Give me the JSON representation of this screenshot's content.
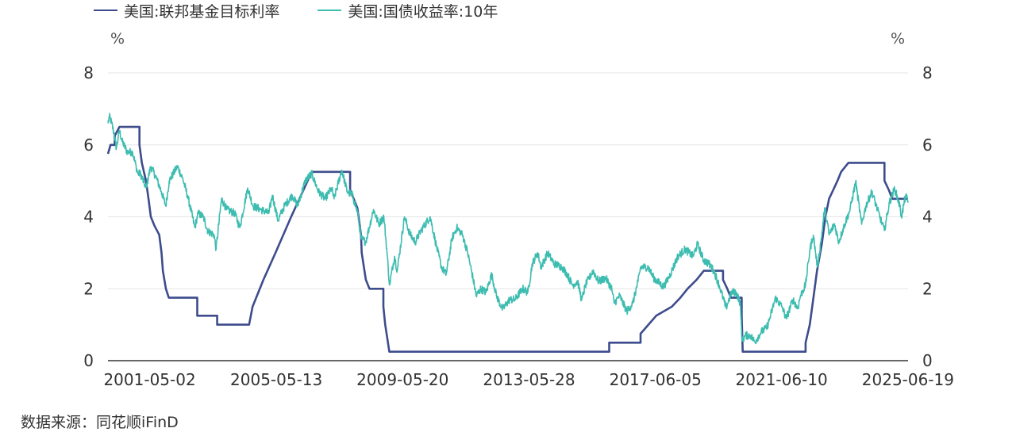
{
  "legend": {
    "series_1": "美国:联邦基金目标利率",
    "series_2": "美国:国债收益率:10年"
  },
  "unit_left": "%",
  "unit_right": "%",
  "source": "数据来源：同花顺iFinD",
  "colors": {
    "series_1": "#3d4c8c",
    "series_2": "#3dbcb0",
    "grid": "#e6e6e6",
    "axis": "#333333"
  },
  "chart_data": {
    "type": "line",
    "x_axis": {
      "type": "date",
      "range": [
        "2000-01-03",
        "2025-06-19"
      ],
      "tick_labels": [
        "2001-05-02",
        "2005-05-13",
        "2009-05-20",
        "2013-05-28",
        "2017-06-05",
        "2021-06-10",
        "2025-06-19"
      ]
    },
    "y_axis": {
      "range": [
        0,
        8
      ],
      "ticks": [
        0,
        2,
        4,
        6,
        8
      ],
      "dual": true
    },
    "grid": true,
    "legend_position": "top-left",
    "series": [
      {
        "name": "美国:联邦基金目标利率",
        "style": "step",
        "points": [
          [
            "2000-01-03",
            5.75
          ],
          [
            "2000-02-02",
            6.0
          ],
          [
            "2000-03-21",
            6.0
          ],
          [
            "2000-03-21",
            6.25
          ],
          [
            "2000-05-16",
            6.5
          ],
          [
            "2001-01-03",
            6.5
          ],
          [
            "2001-01-03",
            6.0
          ],
          [
            "2001-01-31",
            5.5
          ],
          [
            "2001-03-20",
            5.0
          ],
          [
            "2001-04-18",
            4.5
          ],
          [
            "2001-05-15",
            4.0
          ],
          [
            "2001-06-27",
            3.75
          ],
          [
            "2001-08-21",
            3.5
          ],
          [
            "2001-09-17",
            3.0
          ],
          [
            "2001-10-02",
            2.5
          ],
          [
            "2001-11-06",
            2.0
          ],
          [
            "2001-12-11",
            1.75
          ],
          [
            "2002-11-06",
            1.75
          ],
          [
            "2002-11-06",
            1.25
          ],
          [
            "2003-06-25",
            1.25
          ],
          [
            "2003-06-25",
            1.0
          ],
          [
            "2004-06-30",
            1.0
          ],
          [
            "2004-08-10",
            1.5
          ],
          [
            "2004-12-14",
            2.25
          ],
          [
            "2005-05-03",
            3.0
          ],
          [
            "2005-11-01",
            4.0
          ],
          [
            "2006-06-29",
            5.25
          ],
          [
            "2007-09-18",
            5.25
          ],
          [
            "2007-09-18",
            4.75
          ],
          [
            "2007-12-11",
            4.25
          ],
          [
            "2008-01-22",
            3.5
          ],
          [
            "2008-01-30",
            3.0
          ],
          [
            "2008-03-18",
            2.25
          ],
          [
            "2008-04-30",
            2.0
          ],
          [
            "2008-10-08",
            2.0
          ],
          [
            "2008-10-08",
            1.5
          ],
          [
            "2008-10-29",
            1.0
          ],
          [
            "2008-12-16",
            0.25
          ],
          [
            "2015-12-16",
            0.25
          ],
          [
            "2015-12-16",
            0.5
          ],
          [
            "2016-12-14",
            0.5
          ],
          [
            "2016-12-14",
            0.75
          ],
          [
            "2017-03-15",
            1.0
          ],
          [
            "2017-06-14",
            1.25
          ],
          [
            "2017-12-13",
            1.5
          ],
          [
            "2018-03-21",
            1.75
          ],
          [
            "2018-06-13",
            2.0
          ],
          [
            "2018-09-26",
            2.25
          ],
          [
            "2018-12-19",
            2.5
          ],
          [
            "2019-07-31",
            2.5
          ],
          [
            "2019-07-31",
            2.25
          ],
          [
            "2019-09-18",
            2.0
          ],
          [
            "2019-10-30",
            1.75
          ],
          [
            "2020-03-03",
            1.75
          ],
          [
            "2020-03-03",
            1.25
          ],
          [
            "2020-03-15",
            0.25
          ],
          [
            "2022-03-16",
            0.25
          ],
          [
            "2022-03-16",
            0.5
          ],
          [
            "2022-05-04",
            1.0
          ],
          [
            "2022-06-15",
            1.75
          ],
          [
            "2022-07-27",
            2.5
          ],
          [
            "2022-09-21",
            3.25
          ],
          [
            "2022-11-02",
            4.0
          ],
          [
            "2022-12-14",
            4.5
          ],
          [
            "2023-02-01",
            4.75
          ],
          [
            "2023-03-22",
            5.0
          ],
          [
            "2023-05-03",
            5.25
          ],
          [
            "2023-07-26",
            5.5
          ],
          [
            "2024-09-18",
            5.5
          ],
          [
            "2024-09-18",
            5.0
          ],
          [
            "2024-11-07",
            4.75
          ],
          [
            "2024-12-18",
            4.5
          ],
          [
            "2025-06-19",
            4.5
          ]
        ]
      },
      {
        "name": "美国:国债收益率:10年",
        "style": "line",
        "points": [
          [
            "2000-01-03",
            6.6
          ],
          [
            "2000-01-20",
            6.79
          ],
          [
            "2000-02-15",
            6.6
          ],
          [
            "2000-03-15",
            6.3
          ],
          [
            "2000-04-10",
            5.9
          ],
          [
            "2000-05-15",
            6.4
          ],
          [
            "2000-06-15",
            6.1
          ],
          [
            "2000-08-15",
            5.8
          ],
          [
            "2000-10-15",
            5.8
          ],
          [
            "2000-12-15",
            5.2
          ],
          [
            "2001-01-15",
            5.2
          ],
          [
            "2001-03-20",
            4.8
          ],
          [
            "2001-05-15",
            5.4
          ],
          [
            "2001-07-15",
            5.1
          ],
          [
            "2001-09-15",
            4.7
          ],
          [
            "2001-11-05",
            4.3
          ],
          [
            "2001-12-15",
            5.0
          ],
          [
            "2002-03-20",
            5.4
          ],
          [
            "2002-05-15",
            5.1
          ],
          [
            "2002-07-15",
            4.6
          ],
          [
            "2002-10-09",
            3.7
          ],
          [
            "2002-11-15",
            4.1
          ],
          [
            "2003-01-15",
            4.0
          ],
          [
            "2003-03-10",
            3.6
          ],
          [
            "2003-05-20",
            3.5
          ],
          [
            "2003-06-13",
            3.1
          ],
          [
            "2003-08-15",
            4.5
          ],
          [
            "2003-10-15",
            4.2
          ],
          [
            "2004-01-15",
            4.1
          ],
          [
            "2004-03-15",
            3.7
          ],
          [
            "2004-06-14",
            4.8
          ],
          [
            "2004-08-15",
            4.3
          ],
          [
            "2004-11-15",
            4.2
          ],
          [
            "2005-02-15",
            4.1
          ],
          [
            "2005-03-28",
            4.6
          ],
          [
            "2005-06-01",
            3.9
          ],
          [
            "2005-08-15",
            4.3
          ],
          [
            "2005-11-15",
            4.6
          ],
          [
            "2006-01-15",
            4.3
          ],
          [
            "2006-04-15",
            5.0
          ],
          [
            "2006-06-28",
            5.2
          ],
          [
            "2006-09-15",
            4.7
          ],
          [
            "2006-12-01",
            4.5
          ],
          [
            "2007-02-15",
            4.8
          ],
          [
            "2007-03-15",
            4.5
          ],
          [
            "2007-06-12",
            5.3
          ],
          [
            "2007-08-15",
            4.7
          ],
          [
            "2007-10-15",
            4.6
          ],
          [
            "2007-12-15",
            4.1
          ],
          [
            "2008-01-23",
            3.4
          ],
          [
            "2008-03-17",
            3.3
          ],
          [
            "2008-06-15",
            4.2
          ],
          [
            "2008-08-15",
            3.8
          ],
          [
            "2008-10-14",
            4.0
          ],
          [
            "2008-11-20",
            3.0
          ],
          [
            "2008-12-18",
            2.1
          ],
          [
            "2009-02-15",
            2.9
          ],
          [
            "2009-03-18",
            2.5
          ],
          [
            "2009-06-10",
            4.0
          ],
          [
            "2009-08-15",
            3.5
          ],
          [
            "2009-10-15",
            3.3
          ],
          [
            "2009-12-15",
            3.6
          ],
          [
            "2010-04-05",
            4.0
          ],
          [
            "2010-06-15",
            3.2
          ],
          [
            "2010-08-15",
            2.6
          ],
          [
            "2010-10-08",
            2.4
          ],
          [
            "2010-12-15",
            3.4
          ],
          [
            "2011-02-08",
            3.7
          ],
          [
            "2011-04-15",
            3.5
          ],
          [
            "2011-06-15",
            3.0
          ],
          [
            "2011-08-15",
            2.3
          ],
          [
            "2011-09-22",
            1.8
          ],
          [
            "2011-11-15",
            2.0
          ],
          [
            "2012-01-15",
            1.9
          ],
          [
            "2012-03-19",
            2.4
          ],
          [
            "2012-05-15",
            1.8
          ],
          [
            "2012-07-24",
            1.43
          ],
          [
            "2012-10-15",
            1.7
          ],
          [
            "2012-12-15",
            1.7
          ],
          [
            "2013-03-15",
            2.0
          ],
          [
            "2013-05-15",
            1.9
          ],
          [
            "2013-07-05",
            2.7
          ],
          [
            "2013-09-05",
            3.0
          ],
          [
            "2013-10-15",
            2.6
          ],
          [
            "2013-12-31",
            3.0
          ],
          [
            "2014-03-15",
            2.7
          ],
          [
            "2014-06-15",
            2.6
          ],
          [
            "2014-08-15",
            2.4
          ],
          [
            "2014-10-15",
            2.1
          ],
          [
            "2014-12-15",
            2.2
          ],
          [
            "2015-01-30",
            1.68
          ],
          [
            "2015-03-15",
            2.1
          ],
          [
            "2015-06-10",
            2.5
          ],
          [
            "2015-08-15",
            2.2
          ],
          [
            "2015-11-05",
            2.3
          ],
          [
            "2016-01-15",
            2.0
          ],
          [
            "2016-02-11",
            1.6
          ],
          [
            "2016-04-15",
            1.8
          ],
          [
            "2016-07-08",
            1.37
          ],
          [
            "2016-09-15",
            1.6
          ],
          [
            "2016-11-15",
            2.2
          ],
          [
            "2016-12-15",
            2.6
          ],
          [
            "2017-03-13",
            2.6
          ],
          [
            "2017-05-15",
            2.3
          ],
          [
            "2017-09-07",
            2.05
          ],
          [
            "2017-11-15",
            2.35
          ],
          [
            "2018-02-21",
            2.9
          ],
          [
            "2018-05-17",
            3.1
          ],
          [
            "2018-08-15",
            2.9
          ],
          [
            "2018-10-08",
            3.24
          ],
          [
            "2018-12-15",
            2.8
          ],
          [
            "2019-02-15",
            2.7
          ],
          [
            "2019-04-15",
            2.5
          ],
          [
            "2019-06-15",
            2.1
          ],
          [
            "2019-09-03",
            1.47
          ],
          [
            "2019-11-07",
            1.9
          ],
          [
            "2019-12-31",
            1.9
          ],
          [
            "2020-02-15",
            1.6
          ],
          [
            "2020-03-09",
            0.54
          ],
          [
            "2020-04-15",
            0.7
          ],
          [
            "2020-06-15",
            0.7
          ],
          [
            "2020-08-04",
            0.52
          ],
          [
            "2020-10-15",
            0.8
          ],
          [
            "2020-12-15",
            0.9
          ],
          [
            "2021-01-15",
            1.1
          ],
          [
            "2021-03-31",
            1.74
          ],
          [
            "2021-06-15",
            1.5
          ],
          [
            "2021-08-03",
            1.17
          ],
          [
            "2021-10-21",
            1.7
          ],
          [
            "2021-12-15",
            1.45
          ],
          [
            "2022-01-15",
            1.8
          ],
          [
            "2022-03-15",
            2.1
          ],
          [
            "2022-05-06",
            3.1
          ],
          [
            "2022-06-14",
            3.49
          ],
          [
            "2022-08-01",
            2.6
          ],
          [
            "2022-09-15",
            3.4
          ],
          [
            "2022-10-24",
            4.25
          ],
          [
            "2022-12-15",
            3.5
          ],
          [
            "2023-02-15",
            3.8
          ],
          [
            "2023-04-06",
            3.3
          ],
          [
            "2023-06-15",
            3.8
          ],
          [
            "2023-08-15",
            4.2
          ],
          [
            "2023-10-19",
            4.98
          ],
          [
            "2023-12-27",
            3.79
          ],
          [
            "2024-02-15",
            4.3
          ],
          [
            "2024-04-25",
            4.7
          ],
          [
            "2024-06-15",
            4.3
          ],
          [
            "2024-09-16",
            3.62
          ],
          [
            "2024-11-15",
            4.4
          ],
          [
            "2025-01-14",
            4.79
          ],
          [
            "2025-03-15",
            4.3
          ],
          [
            "2025-04-04",
            4.0
          ],
          [
            "2025-05-21",
            4.6
          ],
          [
            "2025-06-19",
            4.39
          ]
        ]
      }
    ]
  }
}
